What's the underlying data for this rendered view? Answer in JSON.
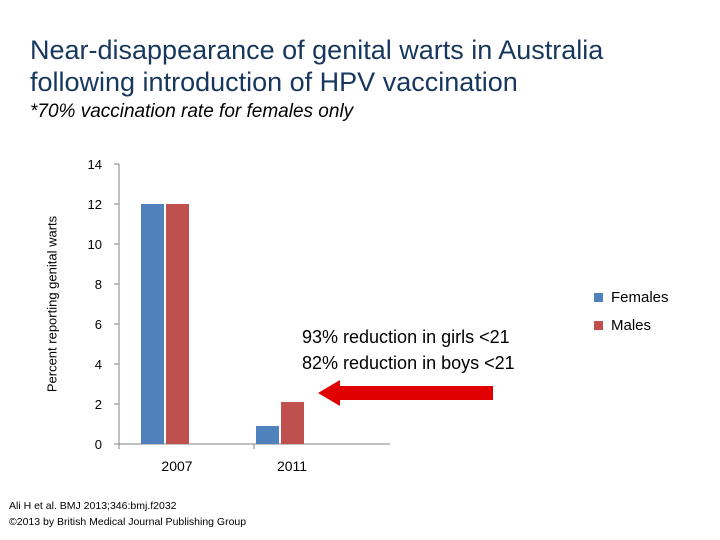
{
  "slide": {
    "title_line1": "Near-disappearance of genital warts in Australia",
    "title_line2": "following introduction of HPV vaccination",
    "subtitle": "*70% vaccination rate for females only"
  },
  "chart_data": {
    "type": "bar",
    "categories": [
      "2007",
      "2011"
    ],
    "series": [
      {
        "name": "Females",
        "values": [
          12,
          0.9
        ],
        "color": "#4F81BD"
      },
      {
        "name": "Males",
        "values": [
          12,
          2.1
        ],
        "color": "#C0504D"
      }
    ],
    "ylabel": "Percent reporting genital warts",
    "xlabel": "",
    "ylim": [
      0,
      14
    ],
    "yticks": [
      0,
      2,
      4,
      6,
      8,
      10,
      12,
      14
    ],
    "grid": false,
    "legend": "right",
    "annotations": [
      "93% reduction in girls <21",
      "82% reduction in boys <21"
    ],
    "arrow_color": "#E00000"
  },
  "citation": {
    "line1": "Ali H et al. BMJ 2013;346:bmj.f2032",
    "line2": "©2013 by British Medical Journal Publishing Group"
  }
}
